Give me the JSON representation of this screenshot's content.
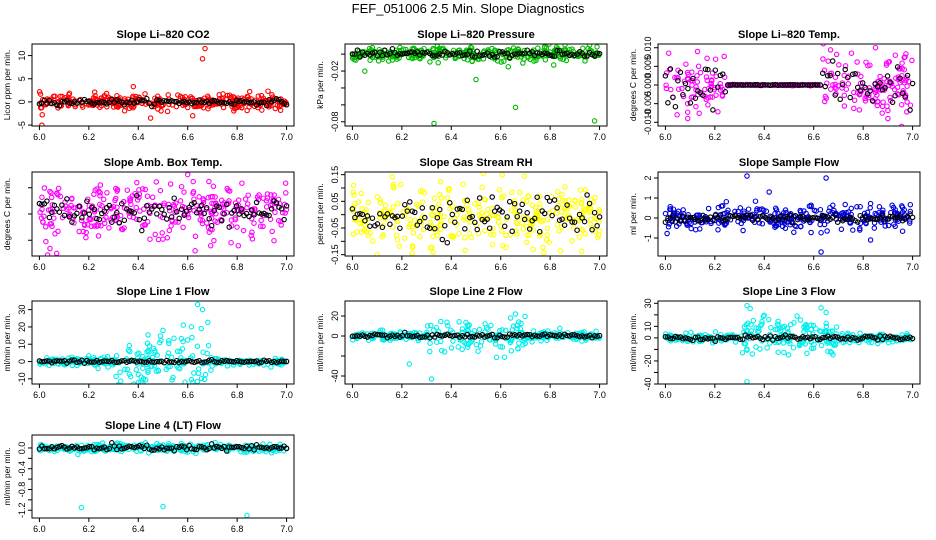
{
  "main_title": "FEF_051006  2.5 Min. Slope Diagnostics",
  "chart_data": [
    {
      "type": "scatter",
      "title": "Slope Li–820 CO2",
      "ylabel": "Licor ppm per min.",
      "xlim": [
        5.97,
        7.03
      ],
      "ylim": [
        -5.2,
        12.5
      ],
      "yticks": [
        -5,
        0,
        5,
        10
      ],
      "ytick_labels": [
        "-5",
        "0",
        "5",
        "10"
      ],
      "xticks": [
        6.0,
        6.2,
        6.4,
        6.6,
        6.8,
        7.0
      ],
      "xtick_labels": [
        "6.0",
        "6.2",
        "6.4",
        "6.6",
        "6.8",
        "7.0"
      ],
      "color": "#ff0000",
      "center": 0,
      "main_spread": 0.8,
      "black_spread": 0.3,
      "outliers": [
        [
          6.67,
          11.5
        ],
        [
          6.66,
          9.3
        ],
        [
          6.01,
          -5.0
        ],
        [
          6.45,
          -3.5
        ],
        [
          6.38,
          3.3
        ],
        [
          6.62,
          -3.0
        ]
      ]
    },
    {
      "type": "scatter",
      "title": "Slope Li–820 Pressure",
      "ylabel": "kPa per min.",
      "xlim": [
        5.97,
        7.03
      ],
      "ylim": [
        -0.085,
        0.012
      ],
      "yticks": [
        -0.08,
        -0.06,
        -0.04,
        -0.02,
        0.0
      ],
      "ytick_labels": [
        "-0.08",
        "",
        "",
        "-0.02",
        ""
      ],
      "xticks": [
        6.0,
        6.2,
        6.4,
        6.6,
        6.8,
        7.0
      ],
      "xtick_labels": [
        "6.0",
        "6.2",
        "6.4",
        "6.6",
        "6.8",
        "7.0"
      ],
      "color": "#00bb00",
      "center": 0,
      "main_spread": 0.0045,
      "black_spread": 0.002,
      "outliers": [
        [
          6.33,
          -0.082
        ],
        [
          6.66,
          -0.063
        ],
        [
          6.98,
          -0.079
        ],
        [
          6.05,
          -0.02
        ],
        [
          6.5,
          -0.03
        ]
      ]
    },
    {
      "type": "scatter",
      "title": "Slope Li–820 Temp.",
      "ylabel": "degrees C per min.",
      "xlim": [
        5.97,
        7.03
      ],
      "ylim": [
        -0.011,
        0.011
      ],
      "yticks": [
        -0.01,
        -0.005,
        0.0,
        0.005,
        0.01
      ],
      "ytick_labels": [
        "-0.010",
        "-0.005",
        "0.000",
        "0.005",
        "0.010"
      ],
      "xticks": [
        6.0,
        6.2,
        6.4,
        6.6,
        6.8,
        7.0
      ],
      "xtick_labels": [
        "6.0",
        "6.2",
        "6.4",
        "6.6",
        "6.8",
        "7.0"
      ],
      "color": "#ff00ff",
      "center": 0,
      "main_spread": 0.004,
      "black_spread": 0.003,
      "flat_range": [
        6.25,
        6.63
      ],
      "outliers": [
        [
          6.13,
          0.009
        ],
        [
          6.09,
          -0.009
        ],
        [
          6.93,
          0.008
        ],
        [
          6.9,
          -0.009
        ],
        [
          6.85,
          0.01
        ]
      ]
    },
    {
      "type": "scatter",
      "title": "Slope Amb. Box Temp.",
      "ylabel": "degrees C per min.",
      "xlim": [
        5.97,
        7.03
      ],
      "ylim": [
        -0.32,
        0.32
      ],
      "yticks": [
        -0.2,
        0.0,
        0.2
      ],
      "ytick_labels": [
        "",
        "",
        ""
      ],
      "xticks": [
        6.0,
        6.2,
        6.4,
        6.6,
        6.8,
        7.0
      ],
      "xtick_labels": [
        "6.0",
        "6.2",
        "6.4",
        "6.6",
        "6.8",
        "7.0"
      ],
      "color": "#ff00ff",
      "center": 0.02,
      "main_spread": 0.1,
      "black_spread": 0.05,
      "outliers": [
        [
          6.07,
          -0.3
        ],
        [
          6.6,
          0.3
        ],
        [
          6.63,
          -0.28
        ]
      ]
    },
    {
      "type": "scatter",
      "title": "Slope Gas Stream RH",
      "ylabel": "percent per min.",
      "xlim": [
        5.97,
        7.03
      ],
      "ylim": [
        -0.155,
        0.16
      ],
      "yticks": [
        -0.15,
        -0.1,
        -0.05,
        0.0,
        0.05,
        0.1,
        0.15
      ],
      "ytick_labels": [
        "-0.15",
        "",
        "-0.05",
        "",
        "0.05",
        "",
        "0.15"
      ],
      "xticks": [
        6.0,
        6.2,
        6.4,
        6.6,
        6.8,
        7.0
      ],
      "xtick_labels": [
        "6.0",
        "6.2",
        "6.4",
        "6.6",
        "6.8",
        "7.0"
      ],
      "color": "#ffff00",
      "center": 0,
      "main_spread": 0.055,
      "black_spread": 0.035,
      "outliers": [
        [
          6.53,
          0.155
        ],
        [
          6.1,
          -0.15
        ]
      ]
    },
    {
      "type": "scatter",
      "title": "Slope Sample Flow",
      "ylabel": "ml per min.",
      "xlim": [
        5.97,
        7.03
      ],
      "ylim": [
        -1.9,
        2.3
      ],
      "yticks": [
        -1,
        0,
        1,
        2
      ],
      "ytick_labels": [
        "-1",
        "0",
        "1",
        "2"
      ],
      "xticks": [
        6.0,
        6.2,
        6.4,
        6.6,
        6.8,
        7.0
      ],
      "xtick_labels": [
        "6.0",
        "6.2",
        "6.4",
        "6.6",
        "6.8",
        "7.0"
      ],
      "color": "#0000dd",
      "center": 0,
      "main_spread": 0.3,
      "black_spread": 0.12,
      "outliers": [
        [
          6.33,
          2.1
        ],
        [
          6.65,
          2.0
        ],
        [
          6.63,
          -1.7
        ],
        [
          6.83,
          -1.1
        ],
        [
          6.42,
          1.3
        ]
      ]
    },
    {
      "type": "scatter",
      "title": "Slope Line 1 Flow",
      "ylabel": "ml/min per min.",
      "xlim": [
        5.97,
        7.03
      ],
      "ylim": [
        -13,
        35
      ],
      "yticks": [
        -10,
        0,
        10,
        20,
        30
      ],
      "ytick_labels": [
        "-10",
        "0",
        "10",
        "20",
        "30"
      ],
      "xticks": [
        6.0,
        6.2,
        6.4,
        6.6,
        6.8,
        7.0
      ],
      "xtick_labels": [
        "6.0",
        "6.2",
        "6.4",
        "6.6",
        "6.8",
        "7.0"
      ],
      "color": "#00eeee",
      "center": 0,
      "main_spread": 1.2,
      "black_spread": 0.4,
      "burst_range": [
        6.3,
        6.7
      ],
      "burst_spread": 8,
      "outliers": [
        [
          6.64,
          33
        ],
        [
          6.66,
          30
        ],
        [
          6.5,
          18
        ]
      ]
    },
    {
      "type": "scatter",
      "title": "Slope Line 2 Flow",
      "ylabel": "ml/min per min.",
      "xlim": [
        5.97,
        7.03
      ],
      "ylim": [
        -48,
        35
      ],
      "yticks": [
        -40,
        -20,
        0,
        20
      ],
      "ytick_labels": [
        "-40",
        "",
        "0",
        "20"
      ],
      "xticks": [
        6.0,
        6.2,
        6.4,
        6.6,
        6.8,
        7.0
      ],
      "xtick_labels": [
        "6.0",
        "6.2",
        "6.4",
        "6.6",
        "6.8",
        "7.0"
      ],
      "color": "#00eeee",
      "center": 0,
      "main_spread": 2,
      "black_spread": 1,
      "burst_range": [
        6.3,
        6.7
      ],
      "burst_spread": 8,
      "outliers": [
        [
          6.32,
          -43
        ],
        [
          6.66,
          22
        ],
        [
          6.64,
          18
        ],
        [
          6.23,
          -28
        ]
      ]
    },
    {
      "type": "scatter",
      "title": "Slope Line 3 Flow",
      "ylabel": "ml/min per min.",
      "xlim": [
        5.97,
        7.03
      ],
      "ylim": [
        -40,
        32
      ],
      "yticks": [
        -40,
        -30,
        -20,
        -10,
        0,
        10,
        20,
        30
      ],
      "ytick_labels": [
        "-40",
        "",
        "-20",
        "",
        "0",
        "10",
        "",
        "30"
      ],
      "xticks": [
        6.0,
        6.2,
        6.4,
        6.6,
        6.8,
        7.0
      ],
      "xtick_labels": [
        "6.0",
        "6.2",
        "6.4",
        "6.6",
        "6.8",
        "7.0"
      ],
      "color": "#00eeee",
      "center": 0,
      "main_spread": 2,
      "black_spread": 1,
      "burst_range": [
        6.3,
        6.7
      ],
      "burst_spread": 8,
      "outliers": [
        [
          6.33,
          -38
        ],
        [
          6.33,
          28
        ],
        [
          6.63,
          26
        ],
        [
          6.65,
          22
        ]
      ]
    },
    {
      "type": "scatter",
      "title": "Slope Line 4 (LT) Flow",
      "ylabel": "ml/min per min.",
      "xlim": [
        5.97,
        7.03
      ],
      "ylim": [
        -1.35,
        0.25
      ],
      "yticks": [
        -1.2,
        -1.0,
        -0.8,
        -0.6,
        -0.4,
        -0.2,
        0.0
      ],
      "ytick_labels": [
        "-1.2",
        "",
        "-0.8",
        "",
        "-0.4",
        "",
        "0.0"
      ],
      "xticks": [
        6.0,
        6.2,
        6.4,
        6.6,
        6.8,
        7.0
      ],
      "xtick_labels": [
        "6.0",
        "6.2",
        "6.4",
        "6.6",
        "6.8",
        "7.0"
      ],
      "color": "#00eeee",
      "center": 0,
      "main_spread": 0.04,
      "black_spread": 0.03,
      "outliers": [
        [
          6.17,
          -1.15
        ],
        [
          6.5,
          -1.13
        ],
        [
          6.84,
          -1.3
        ]
      ]
    }
  ]
}
